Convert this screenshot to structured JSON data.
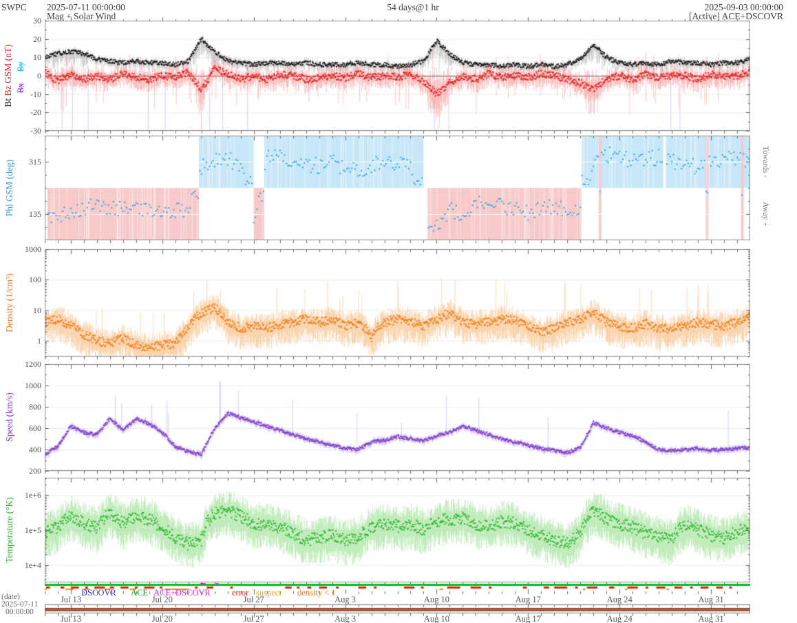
{
  "header": {
    "brand": "SWPC",
    "start_datetime": "2025-07-11 00:00:00",
    "duration": "54 days@1 hr",
    "end_datetime": "2025-09-03 00:00:00",
    "plot_title": "Mag + Solar Wind",
    "status": "[Active] ACE+DSCOVR"
  },
  "legend": {
    "items": [
      {
        "label": "DSCOVR",
        "color": "#2b2bd8"
      },
      {
        "label": "ACE",
        "color": "#00a400"
      },
      {
        "label": "ACE+DSCOVR",
        "color": "#ef18ef"
      },
      {
        "label": "error",
        "color": "#f02010"
      },
      {
        "label": "suspect",
        "color": "#e2a600"
      },
      {
        "label": "density < 1",
        "color": "#f07818"
      }
    ]
  },
  "footer": {
    "axis_caption": "(date)",
    "start_date": "2025-07-11",
    "start_time": "00:00:00"
  },
  "chart_data": {
    "type": "line",
    "title": "Mag + Solar Wind",
    "x_unit": "days since 2025-07-11 00:00:00 UTC",
    "x_range": [
      0,
      54
    ],
    "cadence": "1 hr",
    "x_ticks": {
      "labels": [
        "Jul 13",
        "Jul 20",
        "Jul 27",
        "Aug 3",
        "Aug 10",
        "Aug 17",
        "Aug 24",
        "Aug 31"
      ],
      "days": [
        2,
        9,
        16,
        23,
        30,
        37,
        44,
        51
      ]
    },
    "quality_bars": {
      "source_bar_color": "#00bf1f",
      "source_marks_color": "#ef18ef",
      "error_color": "#ee2200",
      "density_lt1_color": "#f08a1e",
      "coverage_bar_color": "#b0603a",
      "coverage_edge_color": "#7a3418",
      "source_marks_days": [
        [
          11.9,
          12.3
        ],
        [
          13.1,
          13.3
        ]
      ],
      "error_segments_days": [
        [
          0.1,
          0.4
        ],
        [
          1.2,
          1.5
        ],
        [
          2.0,
          2.6
        ],
        [
          3.1,
          3.3
        ],
        [
          3.8,
          4.6
        ],
        [
          5.0,
          5.3
        ],
        [
          5.8,
          6.4
        ],
        [
          6.9,
          7.1
        ],
        [
          7.6,
          8.4
        ],
        [
          8.8,
          9.0
        ],
        [
          11.5,
          11.7
        ],
        [
          12.4,
          12.9
        ],
        [
          14.2,
          14.4
        ],
        [
          18.4,
          18.9
        ],
        [
          19.3,
          19.5
        ],
        [
          20.1,
          20.4
        ],
        [
          21.0,
          21.6
        ],
        [
          22.3,
          22.5
        ],
        [
          24.0,
          24.6
        ],
        [
          25.2,
          25.4
        ],
        [
          27.5,
          28.3
        ],
        [
          28.8,
          29.0
        ],
        [
          30.8,
          31.8
        ],
        [
          32.6,
          33.4
        ],
        [
          34.0,
          34.2
        ],
        [
          36.6,
          36.9
        ],
        [
          38.2,
          38.6
        ],
        [
          39.0,
          40.0
        ],
        [
          40.6,
          40.8
        ],
        [
          41.5,
          42.3
        ],
        [
          43.2,
          43.6
        ],
        [
          44.6,
          45.4
        ],
        [
          46.0,
          46.2
        ],
        [
          46.8,
          47.5
        ],
        [
          48.2,
          48.8
        ],
        [
          49.4,
          49.6
        ],
        [
          50.2,
          50.8
        ],
        [
          51.4,
          51.9
        ],
        [
          52.4,
          52.6
        ]
      ],
      "density_lt1_segments_days": [
        [
          0.0,
          0.15
        ],
        [
          1.6,
          2.2
        ],
        [
          3.0,
          3.4
        ],
        [
          4.6,
          5.0
        ],
        [
          6.5,
          7.0
        ],
        [
          9.2,
          11.0
        ],
        [
          30.2,
          30.5
        ],
        [
          41.2,
          41.4
        ],
        [
          44.4,
          44.6
        ],
        [
          47.6,
          47.8
        ]
      ]
    },
    "panels": [
      {
        "id": "mag",
        "ylabel_parts": [
          {
            "text": "Bt ",
            "color": "#1a1a1a"
          },
          {
            "text": "Bz GSM (nT)",
            "color": "#e32020"
          }
        ],
        "hidden_series": [
          {
            "text": "By",
            "color": "#00c0ea"
          },
          {
            "text": "Bx",
            "color": "#8a2be2"
          }
        ],
        "scale": "linear",
        "ylim": [
          -30,
          30
        ],
        "yticks": [
          {
            "v": 30,
            "label": "30"
          },
          {
            "v": 20,
            "label": "20"
          },
          {
            "v": 10,
            "label": "10"
          },
          {
            "v": 0,
            "label": "0"
          },
          {
            "v": -10,
            "label": "-10"
          },
          {
            "v": -20,
            "label": "-20"
          },
          {
            "v": -30,
            "label": "-30"
          }
        ],
        "zero_line": true,
        "gap_marker_days": [
          1.3,
          2.1,
          3.3,
          7.9,
          9.2,
          12.6,
          13.6,
          15.5,
          29.8,
          30.9,
          47.9,
          48.6
        ],
        "series": [
          {
            "name": "Bt",
            "color": "#1a1a1a",
            "band_color": "rgba(130,130,130,0.32)",
            "daily": [
              10,
              12,
              13,
              12,
              9,
              8,
              7,
              8,
              7,
              7,
              6,
              8,
              20,
              13,
              8,
              7,
              6,
              7,
              7,
              6,
              7,
              6,
              6,
              6,
              7,
              6,
              6,
              5,
              6,
              8,
              19,
              12,
              7,
              6,
              6,
              5,
              6,
              5,
              6,
              5,
              6,
              9,
              17,
              10,
              7,
              6,
              7,
              6,
              8,
              7,
              7,
              6,
              7,
              7,
              9
            ]
          },
          {
            "name": "Bz",
            "color": "#e32020",
            "band_color": "rgba(246,120,120,0.42)",
            "daily": [
              2,
              -3,
              1,
              -2,
              0,
              -2,
              1,
              -1,
              -2,
              0,
              -1,
              2,
              -8,
              4,
              1,
              -2,
              0,
              -2,
              1,
              0,
              -2,
              -1,
              0,
              -1,
              1,
              -1,
              0,
              -1,
              1,
              -3,
              -10,
              -4,
              0,
              -2,
              1,
              -1,
              0,
              -1,
              1,
              0,
              -2,
              -4,
              -7,
              -2,
              0,
              -2,
              1,
              -1,
              0,
              0,
              -2,
              1,
              -1,
              0,
              2
            ]
          }
        ]
      },
      {
        "id": "phi",
        "ylabel": "Phi GSM (deg)",
        "ylabel_color": "#25a8e0",
        "scale": "linear",
        "ylim": [
          45,
          405
        ],
        "yticks": [
          {
            "v": 315,
            "label": "315"
          },
          {
            "v": 135,
            "label": "135"
          }
        ],
        "sector_boundary_deg": 225,
        "sector_colors": {
          "toward": "#c7e7f8",
          "away": "#f7c9c9"
        },
        "sectors": [
          {
            "start": 0.2,
            "end": 11.8,
            "polarity": "away"
          },
          {
            "start": 11.8,
            "end": 16.0,
            "polarity": "toward"
          },
          {
            "start": 16.0,
            "end": 16.8,
            "polarity": "away"
          },
          {
            "start": 16.8,
            "end": 29.0,
            "polarity": "toward"
          },
          {
            "start": 29.3,
            "end": 41.1,
            "polarity": "away"
          },
          {
            "start": 41.1,
            "end": 54.0,
            "polarity": "toward"
          },
          {
            "start": 42.4,
            "end": 42.6,
            "polarity": "away"
          },
          {
            "start": 50.6,
            "end": 50.8,
            "polarity": "away"
          },
          {
            "start": 53.3,
            "end": 53.5,
            "polarity": "away"
          }
        ],
        "sector_gaps": [
          [
            0.0,
            0.2
          ],
          [
            29.0,
            29.3
          ],
          [
            47.35,
            47.55
          ]
        ],
        "right_labels": [
          {
            "text": "Towards -",
            "half": "top"
          },
          {
            "text": "Away +",
            "half": "bottom"
          }
        ],
        "series": [
          {
            "name": "Phi",
            "color": "#2aa3dc",
            "daily": [
              115,
              125,
              140,
              155,
              165,
              150,
              160,
              150,
              145,
              140,
              150,
              140,
              295,
              315,
              325,
              305,
              90,
              330,
              340,
              320,
              310,
              300,
              315,
              295,
              285,
              300,
              320,
              310,
              305,
              120,
              90,
              150,
              135,
              175,
              185,
              160,
              150,
              140,
              155,
              165,
              150,
              140,
              320,
              340,
              330,
              315,
              320,
              330,
              315,
              305,
              300,
              315,
              330,
              320,
              315
            ]
          }
        ]
      },
      {
        "id": "density",
        "ylabel": "Density (1/cm³)",
        "ylabel_color": "#ef7d1a",
        "scale": "log",
        "ylim": [
          0.3,
          1000
        ],
        "yticks": [
          {
            "v": 1000,
            "label": "1000"
          },
          {
            "v": 100,
            "label": "100"
          },
          {
            "v": 10,
            "label": "10"
          },
          {
            "v": 1,
            "label": "1"
          }
        ],
        "series": [
          {
            "name": "Density",
            "color": "#ef7d1a",
            "band_color": "rgba(248,180,110,0.5)",
            "daily": [
              4,
              5,
              3,
              1.5,
              1,
              0.8,
              1.2,
              0.7,
              0.6,
              0.7,
              0.8,
              2.5,
              8,
              12,
              4,
              2.5,
              3,
              2.5,
              3.5,
              4,
              5,
              4,
              5,
              3,
              4,
              1.2,
              4,
              5,
              4,
              3,
              5,
              8,
              4,
              3.5,
              4,
              5,
              4.5,
              3,
              2,
              2.5,
              4,
              5,
              8,
              4,
              3,
              2.5,
              3.5,
              2.5,
              2.5,
              3,
              4,
              3.5,
              3,
              4,
              6
            ]
          }
        ]
      },
      {
        "id": "speed",
        "ylabel": "Speed (km/s)",
        "ylabel_color": "#7a3bd0",
        "scale": "linear",
        "ylim": [
          200,
          1200
        ],
        "yticks": [
          {
            "v": 1200,
            "label": "1200"
          },
          {
            "v": 1000,
            "label": "1000"
          },
          {
            "v": 800,
            "label": "800"
          },
          {
            "v": 600,
            "label": "600"
          },
          {
            "v": 400,
            "label": "400"
          },
          {
            "v": 200,
            "label": "200"
          }
        ],
        "spike_day": 13.4,
        "series": [
          {
            "name": "Speed",
            "color": "#7e44c8",
            "band_color": "rgba(187,150,233,0.55)",
            "daily": [
              350,
              430,
              620,
              560,
              540,
              690,
              580,
              690,
              640,
              560,
              430,
              380,
              355,
              600,
              740,
              700,
              660,
              620,
              580,
              540,
              500,
              470,
              440,
              415,
              400,
              470,
              490,
              520,
              500,
              480,
              530,
              560,
              620,
              580,
              540,
              500,
              470,
              440,
              410,
              390,
              370,
              420,
              650,
              600,
              560,
              530,
              470,
              400,
              390,
              400,
              410,
              395,
              400,
              410,
              420
            ]
          }
        ]
      },
      {
        "id": "temperature",
        "ylabel": "Temperature (°K)",
        "ylabel_color": "#2db52d",
        "scale": "log",
        "ylim": [
          3162,
          3162278
        ],
        "yticks": [
          {
            "v": 1000000,
            "label": "1e+6"
          },
          {
            "v": 100000,
            "label": "1e+5"
          },
          {
            "v": 10000,
            "label": "1e+4"
          }
        ],
        "series": [
          {
            "name": "Temperature",
            "color": "#2db52d",
            "band_color": "rgba(150,222,140,0.55)",
            "daily": [
              80000,
              120000,
              250000,
              150000,
              120000,
              300000,
              150000,
              250000,
              200000,
              120000,
              60000,
              40000,
              50000,
              300000,
              350000,
              250000,
              150000,
              150000,
              120000,
              80000,
              50000,
              60000,
              70000,
              50000,
              60000,
              120000,
              150000,
              130000,
              150000,
              100000,
              180000,
              200000,
              220000,
              150000,
              120000,
              180000,
              150000,
              100000,
              70000,
              50000,
              40000,
              80000,
              350000,
              200000,
              150000,
              120000,
              80000,
              60000,
              50000,
              150000,
              100000,
              70000,
              60000,
              90000,
              120000
            ]
          }
        ]
      }
    ]
  }
}
